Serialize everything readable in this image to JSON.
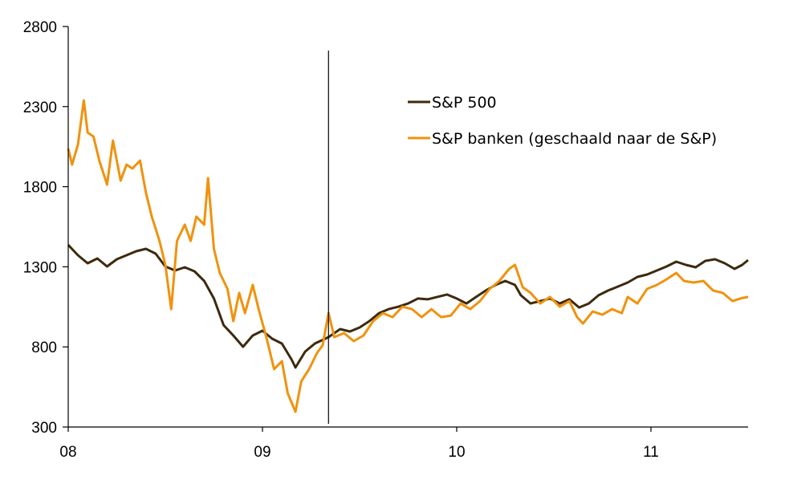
{
  "chart_data": {
    "type": "line",
    "title": "",
    "xlabel": "",
    "ylabel": "",
    "xlim": [
      2008.0,
      2011.5
    ],
    "ylim": [
      300,
      2800
    ],
    "yticks": [
      300,
      800,
      1300,
      1800,
      2300,
      2800
    ],
    "ytick_labels": [
      "300",
      "800",
      "1300",
      "1800",
      "2300",
      "2800"
    ],
    "xticks": [
      2008,
      2009,
      2010,
      2011
    ],
    "xtick_labels": [
      "08",
      "09",
      "10",
      "11"
    ],
    "grid": false,
    "legend_position": "top-right",
    "vertical_marker": {
      "x": 2009.34,
      "y_top": 2650
    },
    "series": [
      {
        "name": "S&P 500",
        "color": "#3D2A0E",
        "x": [
          2008.0,
          2008.05,
          2008.1,
          2008.15,
          2008.2,
          2008.25,
          2008.3,
          2008.35,
          2008.4,
          2008.45,
          2008.5,
          2008.55,
          2008.6,
          2008.65,
          2008.7,
          2008.75,
          2008.8,
          2008.85,
          2008.9,
          2008.95,
          2009.0,
          2009.05,
          2009.1,
          2009.15,
          2009.17,
          2009.22,
          2009.27,
          2009.34,
          2009.4,
          2009.45,
          2009.5,
          2009.55,
          2009.6,
          2009.65,
          2009.7,
          2009.75,
          2009.8,
          2009.85,
          2009.9,
          2009.95,
          2010.0,
          2010.05,
          2010.1,
          2010.15,
          2010.2,
          2010.25,
          2010.3,
          2010.33,
          2010.38,
          2010.43,
          2010.48,
          2010.53,
          2010.58,
          2010.63,
          2010.68,
          2010.73,
          2010.78,
          2010.83,
          2010.88,
          2010.93,
          2010.98,
          2011.03,
          2011.08,
          2011.13,
          2011.18,
          2011.23,
          2011.28,
          2011.33,
          2011.38,
          2011.43,
          2011.47,
          2011.5
        ],
        "values": [
          1437,
          1372,
          1322,
          1352,
          1302,
          1347,
          1372,
          1397,
          1412,
          1382,
          1302,
          1277,
          1297,
          1272,
          1212,
          1102,
          936,
          871,
          801,
          871,
          901,
          851,
          821,
          721,
          671,
          771,
          821,
          861,
          911,
          896,
          921,
          961,
          1011,
          1036,
          1051,
          1071,
          1102,
          1097,
          1112,
          1127,
          1102,
          1071,
          1112,
          1152,
          1187,
          1212,
          1187,
          1122,
          1071,
          1086,
          1102,
          1071,
          1097,
          1046,
          1071,
          1122,
          1152,
          1177,
          1202,
          1237,
          1252,
          1277,
          1302,
          1332,
          1312,
          1297,
          1337,
          1347,
          1322,
          1287,
          1312,
          1342
        ]
      },
      {
        "name": "S&P banken (geschaald naar de S&P)",
        "color": "#F0920E",
        "x": [
          2008.0,
          2008.02,
          2008.05,
          2008.08,
          2008.1,
          2008.13,
          2008.16,
          2008.2,
          2008.23,
          2008.27,
          2008.3,
          2008.33,
          2008.37,
          2008.4,
          2008.43,
          2008.47,
          2008.5,
          2008.53,
          2008.56,
          2008.6,
          2008.63,
          2008.66,
          2008.7,
          2008.72,
          2008.75,
          2008.78,
          2008.82,
          2008.85,
          2008.88,
          2008.91,
          2008.95,
          2008.98,
          2009.02,
          2009.06,
          2009.1,
          2009.13,
          2009.17,
          2009.2,
          2009.24,
          2009.28,
          2009.31,
          2009.34,
          2009.37,
          2009.42,
          2009.47,
          2009.52,
          2009.57,
          2009.62,
          2009.67,
          2009.72,
          2009.77,
          2009.82,
          2009.87,
          2009.92,
          2009.97,
          2010.02,
          2010.07,
          2010.12,
          2010.17,
          2010.22,
          2010.27,
          2010.3,
          2010.34,
          2010.38,
          2010.43,
          2010.48,
          2010.53,
          2010.58,
          2010.62,
          2010.65,
          2010.7,
          2010.75,
          2010.8,
          2010.85,
          2010.88,
          2010.93,
          2010.98,
          2011.03,
          2011.08,
          2011.13,
          2011.17,
          2011.22,
          2011.27,
          2011.32,
          2011.37,
          2011.42,
          2011.46,
          2011.5
        ],
        "values": [
          2038,
          1938,
          2063,
          2339,
          2138,
          2113,
          1963,
          1813,
          2088,
          1838,
          1938,
          1913,
          1963,
          1763,
          1613,
          1462,
          1312,
          1036,
          1462,
          1563,
          1462,
          1613,
          1563,
          1853,
          1412,
          1262,
          1162,
          961,
          1137,
          1011,
          1187,
          1036,
          861,
          661,
          711,
          510,
          395,
          586,
          661,
          761,
          811,
          1011,
          861,
          886,
          836,
          871,
          961,
          1011,
          986,
          1051,
          1036,
          986,
          1036,
          986,
          996,
          1071,
          1036,
          1086,
          1162,
          1212,
          1287,
          1312,
          1172,
          1137,
          1071,
          1112,
          1051,
          1086,
          986,
          946,
          1021,
          1001,
          1036,
          1011,
          1112,
          1071,
          1162,
          1187,
          1222,
          1262,
          1212,
          1202,
          1212,
          1152,
          1137,
          1086,
          1102,
          1112
        ]
      }
    ]
  }
}
